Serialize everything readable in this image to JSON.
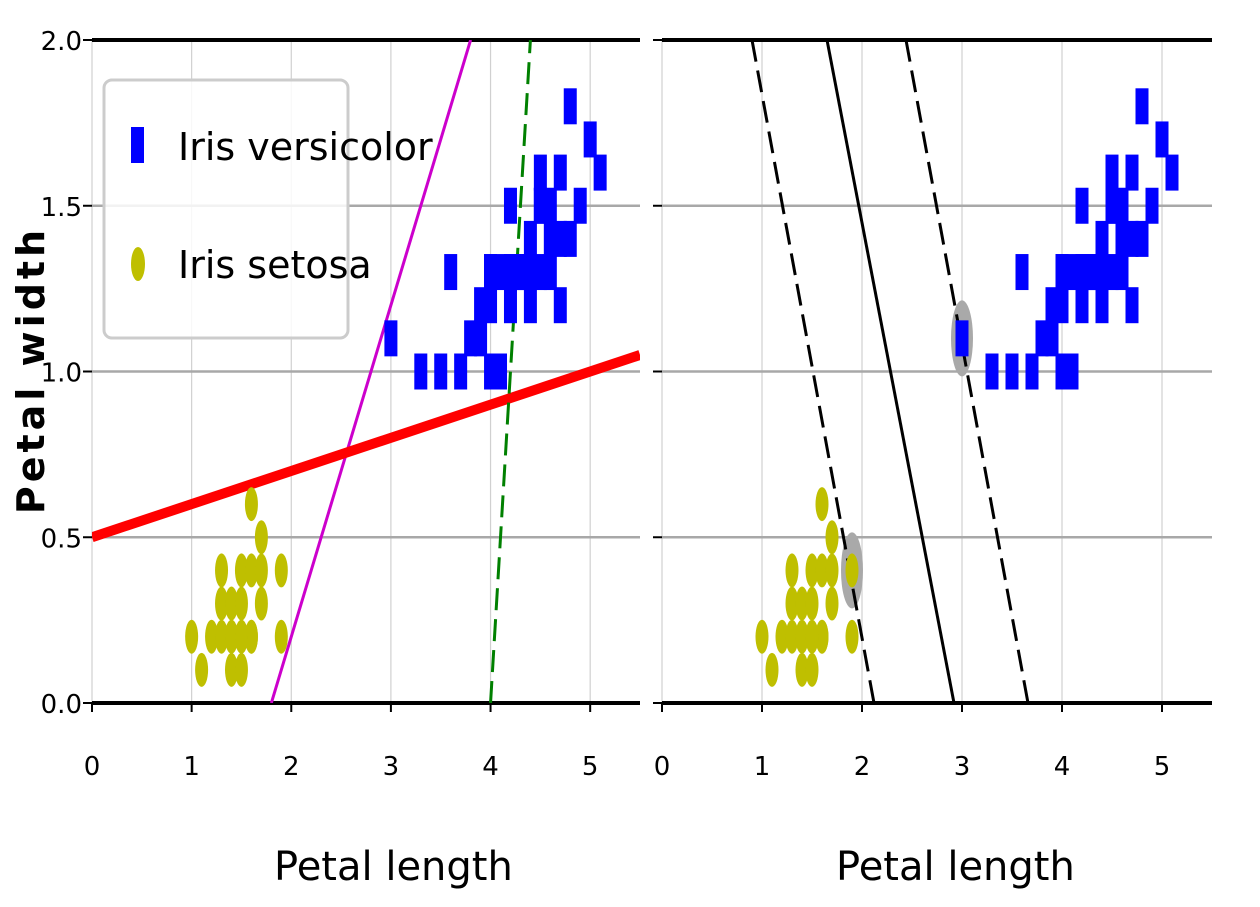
{
  "chart_data": [
    {
      "type": "scatter",
      "title": "",
      "xlabel": "Petal length",
      "ylabel": "Petal width",
      "xlim": [
        0,
        5.5
      ],
      "ylim": [
        0,
        2.0
      ],
      "xticks": [
        "0",
        "1",
        "2",
        "3",
        "4",
        "5"
      ],
      "yticks": [
        "0.0",
        "0.5",
        "1.0",
        "1.5",
        "2.0"
      ],
      "grid": true,
      "legend_position": "top-left",
      "legend": [
        "Iris versicolor",
        "Iris setosa"
      ],
      "series": [
        {
          "name": "Iris versicolor",
          "marker": "square",
          "color": "#0000ff",
          "x": [
            3.0,
            3.3,
            3.5,
            3.7,
            3.8,
            3.9,
            3.9,
            4.0,
            4.0,
            4.0,
            4.1,
            4.2,
            4.2,
            4.3,
            4.4,
            4.4,
            4.5,
            4.5,
            4.6,
            4.6,
            4.7,
            4.7,
            4.8,
            4.9,
            5.0,
            5.1,
            3.6,
            4.0,
            4.1,
            4.2,
            4.3,
            4.4,
            4.5,
            4.6,
            4.7,
            4.8,
            4.2,
            4.5
          ],
          "y": [
            1.1,
            1.0,
            1.0,
            1.0,
            1.1,
            1.1,
            1.2,
            1.0,
            1.2,
            1.3,
            1.0,
            1.2,
            1.3,
            1.3,
            1.2,
            1.4,
            1.3,
            1.5,
            1.3,
            1.4,
            1.4,
            1.6,
            1.8,
            1.5,
            1.7,
            1.6,
            1.3,
            1.3,
            1.3,
            1.3,
            1.3,
            1.3,
            1.5,
            1.5,
            1.2,
            1.4,
            1.5,
            1.6
          ]
        },
        {
          "name": "Iris setosa",
          "marker": "ellipse",
          "color": "#bfbf00",
          "x": [
            1.0,
            1.1,
            1.2,
            1.3,
            1.3,
            1.4,
            1.4,
            1.4,
            1.5,
            1.5,
            1.5,
            1.6,
            1.6,
            1.6,
            1.7,
            1.7,
            1.9,
            1.9,
            1.3,
            1.5,
            1.6,
            1.4,
            1.5,
            1.7
          ],
          "y": [
            0.2,
            0.1,
            0.2,
            0.2,
            0.3,
            0.1,
            0.2,
            0.3,
            0.1,
            0.2,
            0.4,
            0.2,
            0.4,
            0.6,
            0.3,
            0.5,
            0.2,
            0.4,
            0.4,
            0.3,
            0.2,
            0.2,
            0.2,
            0.4
          ]
        }
      ],
      "lines": [
        {
          "color": "#cc00cc",
          "style": "solid",
          "points": [
            [
              1.8,
              0.0
            ],
            [
              3.8,
              2.0
            ]
          ]
        },
        {
          "color": "#ff0000",
          "style": "solid-thick",
          "points": [
            [
              0,
              0.5
            ],
            [
              5.5,
              1.05
            ]
          ]
        },
        {
          "color": "#008000",
          "style": "dashed",
          "points": [
            [
              4.0,
              0.0
            ],
            [
              4.4,
              2.0
            ]
          ]
        }
      ]
    },
    {
      "type": "scatter",
      "title": "",
      "xlabel": "Petal length",
      "ylabel": "",
      "xlim": [
        0,
        5.5
      ],
      "ylim": [
        0,
        2.0
      ],
      "xticks": [
        "0",
        "1",
        "2",
        "3",
        "4",
        "5"
      ],
      "yticks": [],
      "grid": true,
      "series": [
        {
          "name": "Iris versicolor",
          "marker": "square",
          "color": "#0000ff",
          "x": [
            3.0,
            3.3,
            3.5,
            3.7,
            3.8,
            3.9,
            3.9,
            4.0,
            4.0,
            4.0,
            4.1,
            4.2,
            4.2,
            4.3,
            4.4,
            4.4,
            4.5,
            4.5,
            4.6,
            4.6,
            4.7,
            4.7,
            4.8,
            4.9,
            5.0,
            5.1,
            3.6,
            4.0,
            4.1,
            4.2,
            4.3,
            4.4,
            4.5,
            4.6,
            4.7,
            4.8,
            4.2,
            4.5
          ],
          "y": [
            1.1,
            1.0,
            1.0,
            1.0,
            1.1,
            1.1,
            1.2,
            1.0,
            1.2,
            1.3,
            1.0,
            1.2,
            1.3,
            1.3,
            1.2,
            1.4,
            1.3,
            1.5,
            1.3,
            1.4,
            1.4,
            1.6,
            1.8,
            1.5,
            1.7,
            1.6,
            1.3,
            1.3,
            1.3,
            1.3,
            1.3,
            1.3,
            1.5,
            1.5,
            1.2,
            1.4,
            1.5,
            1.6
          ]
        },
        {
          "name": "Iris setosa",
          "marker": "ellipse",
          "color": "#bfbf00",
          "x": [
            1.0,
            1.1,
            1.2,
            1.3,
            1.3,
            1.4,
            1.4,
            1.4,
            1.5,
            1.5,
            1.5,
            1.6,
            1.6,
            1.6,
            1.7,
            1.7,
            1.9,
            1.9,
            1.3,
            1.5,
            1.6,
            1.4,
            1.5,
            1.7
          ],
          "y": [
            0.2,
            0.1,
            0.2,
            0.2,
            0.3,
            0.1,
            0.2,
            0.3,
            0.1,
            0.2,
            0.4,
            0.2,
            0.4,
            0.6,
            0.3,
            0.5,
            0.2,
            0.4,
            0.4,
            0.3,
            0.2,
            0.2,
            0.2,
            0.4
          ]
        }
      ],
      "support_vectors": [
        [
          1.9,
          0.4
        ],
        [
          3.0,
          1.1
        ]
      ],
      "lines": [
        {
          "color": "#000000",
          "style": "solid",
          "points": [
            [
              1.65,
              2.0
            ],
            [
              2.92,
              0.0
            ]
          ]
        },
        {
          "color": "#000000",
          "style": "dashed",
          "points": [
            [
              0.9,
              2.0
            ],
            [
              2.12,
              0.0
            ]
          ]
        },
        {
          "color": "#000000",
          "style": "dashed",
          "points": [
            [
              2.44,
              2.0
            ],
            [
              3.66,
              0.0
            ]
          ]
        }
      ]
    }
  ]
}
